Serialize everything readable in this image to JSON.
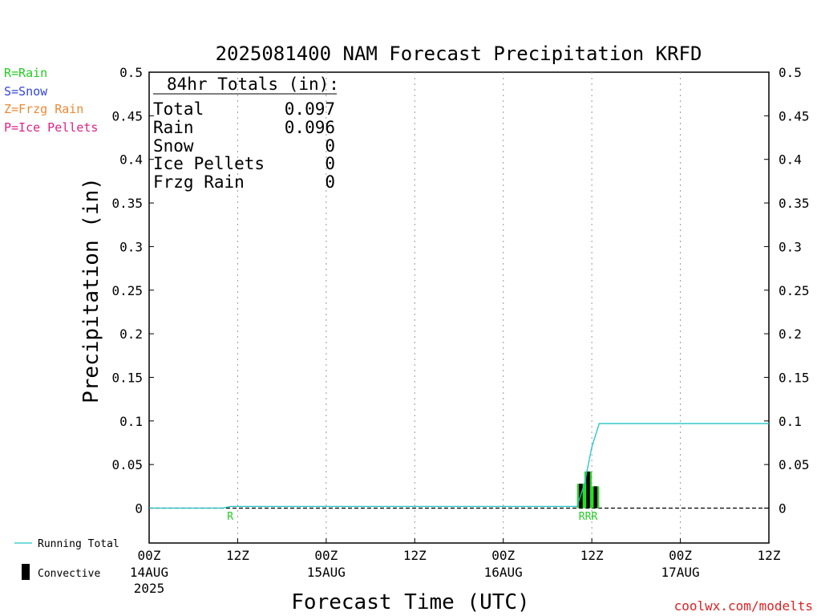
{
  "chart_data": {
    "type": "bar",
    "title": "2025081400 NAM Forecast Precipitation KRFD",
    "xlabel": "Forecast Time (UTC)",
    "ylabel": "Precipitation (in)",
    "ylim": [
      -0.04,
      0.5
    ],
    "xlim_hours": [
      0,
      84
    ],
    "grid_x": "dotted vertical at each 12-hour tick",
    "y_ticks": [
      "0",
      "0.05",
      "0.1",
      "0.15",
      "0.2",
      "0.25",
      "0.3",
      "0.35",
      "0.4",
      "0.45",
      "0.5"
    ],
    "x_ticks": [
      {
        "hour": 0,
        "label": "00Z",
        "date": "14AUG",
        "year": "2025"
      },
      {
        "hour": 12,
        "label": "12Z",
        "date": "",
        "year": ""
      },
      {
        "hour": 24,
        "label": "00Z",
        "date": "15AUG",
        "year": ""
      },
      {
        "hour": 36,
        "label": "12Z",
        "date": "",
        "year": ""
      },
      {
        "hour": 48,
        "label": "00Z",
        "date": "16AUG",
        "year": ""
      },
      {
        "hour": 60,
        "label": "12Z",
        "date": "",
        "year": ""
      },
      {
        "hour": 72,
        "label": "00Z",
        "date": "17AUG",
        "year": ""
      },
      {
        "hour": 84,
        "label": "12Z",
        "date": "",
        "year": ""
      }
    ],
    "series": [
      {
        "name": "Running Total",
        "type": "line",
        "color": "#22c3c3",
        "x": [
          0,
          10,
          11,
          57,
          58,
          59,
          60,
          61,
          84
        ],
        "y": [
          0,
          0,
          0.002,
          0.002,
          0.002,
          0.028,
          0.07,
          0.097,
          0.097
        ]
      },
      {
        "name": "Rain",
        "type": "bar",
        "color": "#22dd22",
        "x": [
          58.5,
          59.5,
          60.5
        ],
        "y": [
          0.028,
          0.042,
          0.025
        ]
      },
      {
        "name": "Convective",
        "type": "bar",
        "color": "#000000",
        "x": [
          58.5,
          59.5,
          60.5
        ],
        "y": [
          0.028,
          0.042,
          0.025
        ]
      }
    ],
    "ptype_markers": [
      {
        "hour": 11,
        "text": "R"
      },
      {
        "hour": 59.5,
        "text": "RRR"
      }
    ]
  },
  "legend_keys": [
    {
      "text": "R=Rain",
      "color": "#22cc22"
    },
    {
      "text": "S=Snow",
      "color": "#3344dd"
    },
    {
      "text": "Z=Frzg Rain",
      "color": "#ee8833"
    },
    {
      "text": "P=Ice Pellets",
      "color": "#dd2288"
    }
  ],
  "totals": {
    "header": "84hr Totals (in):",
    "rows": [
      {
        "label": "Total",
        "value": "0.097"
      },
      {
        "label": "Rain",
        "value": "0.096"
      },
      {
        "label": "Snow",
        "value": "0"
      },
      {
        "label": "Ice Pellets",
        "value": "0"
      },
      {
        "label": "Frzg Rain",
        "value": "0"
      }
    ]
  },
  "bottom_legend": {
    "running_total": "Running Total",
    "convective": "Convective"
  },
  "credit": "coolwx.com/modelts",
  "colors": {
    "running_total": "#22c3c3",
    "rain": "#22dd22",
    "convective": "#000000",
    "credit": "#dd2222"
  }
}
